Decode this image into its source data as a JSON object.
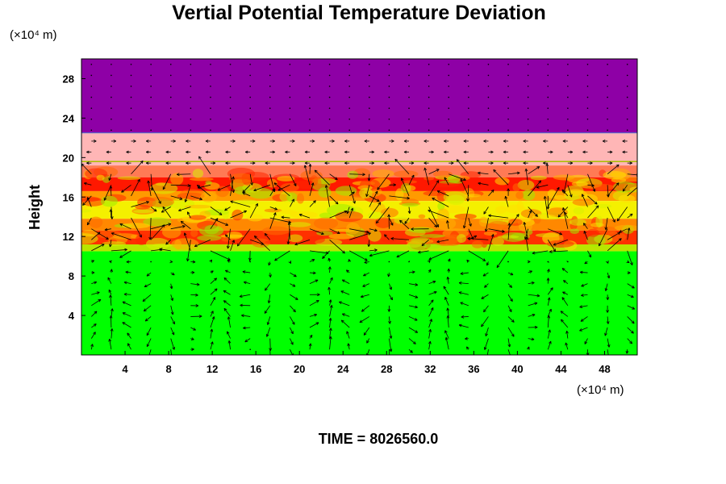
{
  "chart_data": {
    "type": "heatmap",
    "title": "Vertial Potential Temperature Deviation",
    "ylabel": "Height",
    "x_unit": "(×10⁴ m)",
    "y_unit": "(×10⁴ m)",
    "xlim": [
      0,
      51
    ],
    "ylim": [
      0,
      30
    ],
    "x_ticks": [
      4,
      8,
      12,
      16,
      20,
      24,
      28,
      32,
      36,
      40,
      44,
      48
    ],
    "y_ticks": [
      4,
      8,
      12,
      16,
      20,
      24,
      28
    ],
    "grid": false,
    "legend": "none",
    "bands": [
      {
        "y0": 22.5,
        "y1": 30,
        "color": "#8e00a6"
      },
      {
        "y0": 19.2,
        "y1": 22.5,
        "color": "#ffb6b6"
      },
      {
        "y0": 18.0,
        "y1": 19.2,
        "color": "#ff7a55"
      },
      {
        "y0": 16.6,
        "y1": 18.0,
        "color": "#ff1800"
      },
      {
        "y0": 15.6,
        "y1": 16.6,
        "color": "#ff9a00"
      },
      {
        "y0": 13.8,
        "y1": 15.6,
        "color": "#f4f000"
      },
      {
        "y0": 12.6,
        "y1": 13.8,
        "color": "#ff8800"
      },
      {
        "y0": 11.2,
        "y1": 12.6,
        "color": "#ff3000"
      },
      {
        "y0": 10.5,
        "y1": 11.2,
        "color": "#b8e600"
      },
      {
        "y0": 0,
        "y1": 10.5,
        "color": "#00ff00"
      }
    ],
    "overlay": "wind-vectors"
  },
  "footer": {
    "time_label": "TIME = 8026560.0"
  }
}
